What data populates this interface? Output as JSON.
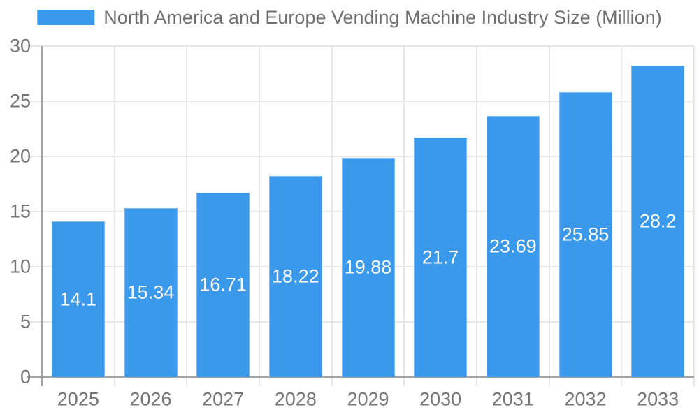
{
  "chart_data": {
    "type": "bar",
    "title": "North America and Europe Vending Machine Industry Size (Million)",
    "legend_position": "top-center",
    "categories": [
      "2025",
      "2026",
      "2027",
      "2028",
      "2029",
      "2030",
      "2031",
      "2032",
      "2033"
    ],
    "values": [
      14.1,
      15.34,
      16.71,
      18.22,
      19.88,
      21.7,
      23.69,
      25.85,
      28.2
    ],
    "value_labels": [
      "14.1",
      "15.34",
      "16.71",
      "18.22",
      "19.88",
      "21.7",
      "23.69",
      "25.85",
      "28.2"
    ],
    "xlabel": "",
    "ylabel": "",
    "ylim": [
      0,
      30
    ],
    "yticks": [
      0,
      5,
      10,
      15,
      20,
      25,
      30
    ],
    "grid": true,
    "colors": {
      "bar": "#3B99EC",
      "bar_border": "#7CBAF2",
      "grid": "#E7E7E7",
      "axis": "#A3A3A3",
      "tick_text": "#757575",
      "title_text": "#6E6E6E",
      "value_text": "#FFFFFF",
      "background": "#FFFFFF"
    }
  }
}
